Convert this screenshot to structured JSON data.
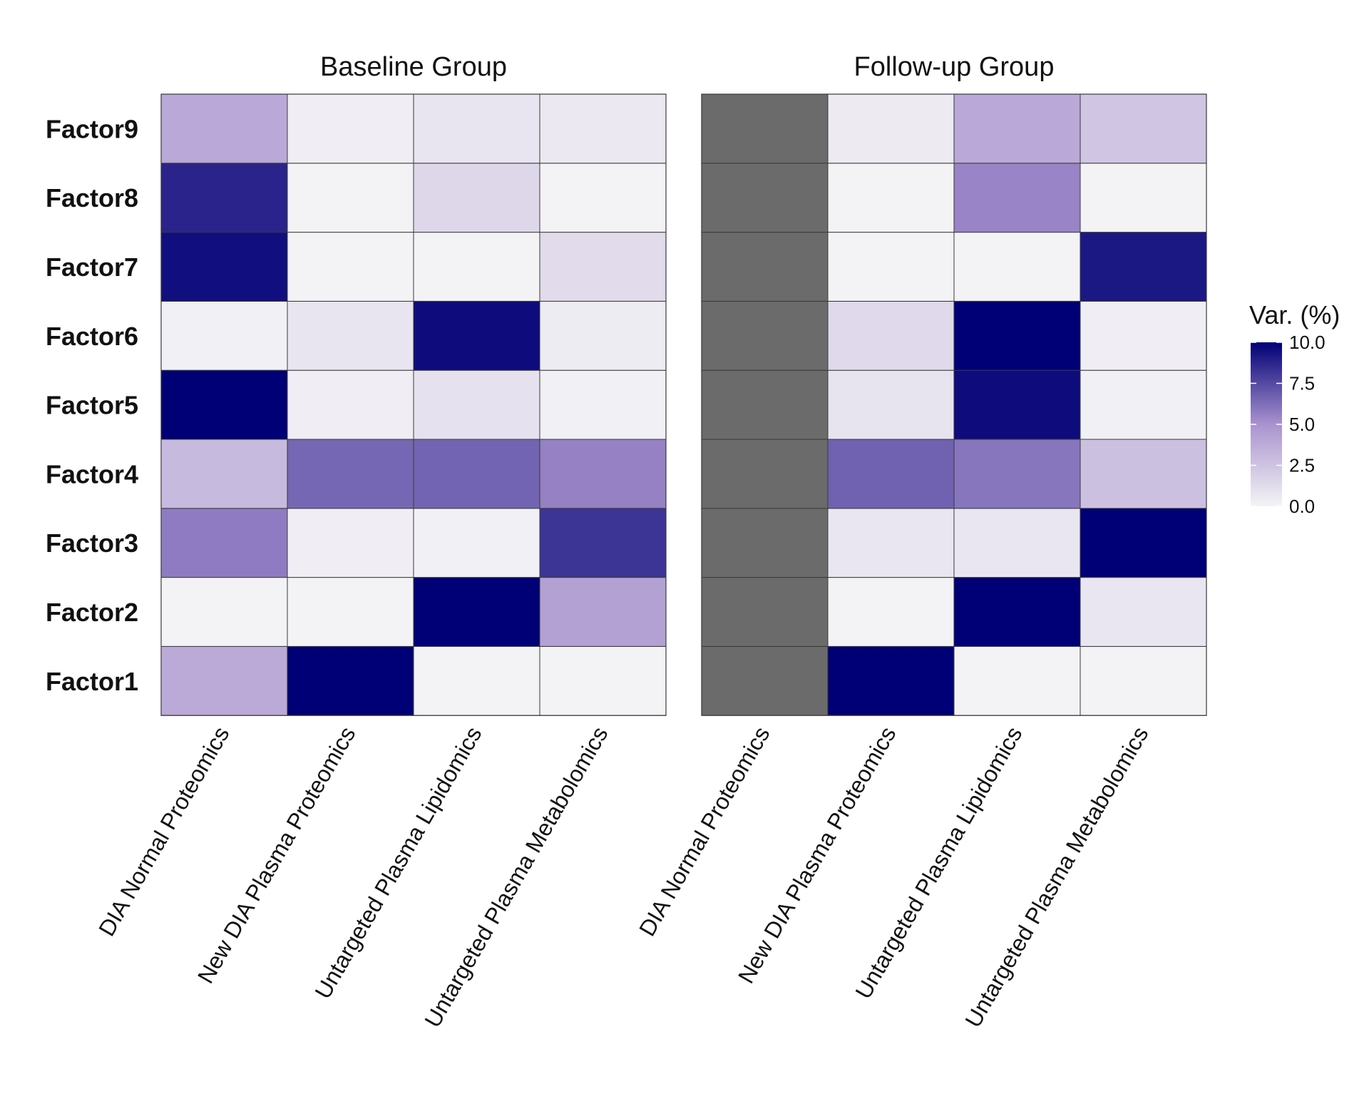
{
  "chart_data": {
    "type": "heatmap",
    "rows": [
      "Factor1",
      "Factor2",
      "Factor3",
      "Factor4",
      "Factor5",
      "Factor6",
      "Factor7",
      "Factor8",
      "Factor9"
    ],
    "columns": [
      "DIA Normal Proteomics",
      "New DIA Plasma Proteomics",
      "Untargeted Plasma Lipidomics",
      "Untargeted Plasma Metabolomics"
    ],
    "panels": [
      {
        "title": "Baseline Group",
        "values": [
          [
            3.8,
            10.0,
            0.1,
            0.1
          ],
          [
            0.1,
            0.1,
            10.0,
            4.3
          ],
          [
            5.8,
            0.3,
            0.2,
            8.2
          ],
          [
            3.0,
            6.5,
            6.6,
            5.6
          ],
          [
            10.0,
            0.3,
            1.0,
            0.2
          ],
          [
            0.2,
            0.8,
            9.6,
            0.4
          ],
          [
            9.5,
            0.1,
            0.1,
            1.3
          ],
          [
            8.8,
            0.1,
            1.5,
            0.1
          ],
          [
            3.9,
            0.3,
            0.8,
            0.6
          ]
        ],
        "missing_columns": []
      },
      {
        "title": "Follow-up Group",
        "values": [
          [
            null,
            10.0,
            0.1,
            0.1
          ],
          [
            null,
            0.1,
            10.0,
            0.7
          ],
          [
            null,
            0.7,
            0.7,
            10.0
          ],
          [
            null,
            6.7,
            6.0,
            2.7
          ],
          [
            null,
            0.9,
            9.6,
            0.2
          ],
          [
            null,
            1.4,
            10.0,
            0.3
          ],
          [
            null,
            0.1,
            0.1,
            9.2
          ],
          [
            null,
            0.1,
            5.5,
            0.1
          ],
          [
            null,
            0.5,
            3.9,
            2.4
          ]
        ],
        "missing_columns": [
          "DIA Normal Proteomics"
        ]
      }
    ],
    "legend": {
      "title": "Var. (%)",
      "min": 0,
      "max": 10,
      "ticks": [
        "0.0",
        "2.5",
        "5.0",
        "7.5",
        "10.0"
      ],
      "low_color": "#f4f4f6",
      "mid_color": "#a993cf",
      "high_color": "#000076",
      "na_color": "#6b6b6b",
      "placement": "right"
    },
    "grid": false
  }
}
